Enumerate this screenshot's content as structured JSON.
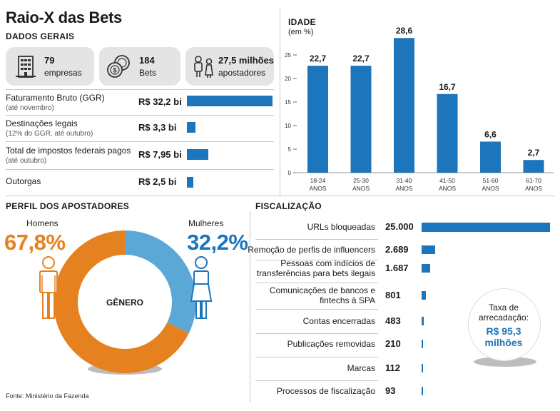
{
  "title": "Raio-X das Bets",
  "dados_gerais": {
    "heading": "DADOS GERAIS",
    "stats": [
      {
        "value": "79",
        "label": "empresas",
        "icon": "building-icon"
      },
      {
        "value": "184",
        "label": "Bets",
        "icon": "coins-icon"
      },
      {
        "value": "27,5 milhões",
        "label": "apostadores",
        "icon": "people-icon"
      }
    ],
    "rows": [
      {
        "label": "Faturamento Bruto (GGR)",
        "note": "(até novembro)",
        "value": "R$ 32,2 bi",
        "amount": 32.2
      },
      {
        "label": "Destinações legais",
        "note": "(12% do GGR, até outubro)",
        "value": "R$ 3,3 bi",
        "amount": 3.3
      },
      {
        "label": "Total de impostos federais pagos",
        "note": "(até outubro)",
        "value": "R$ 7,95 bi",
        "amount": 7.95
      },
      {
        "label": "Outorgas",
        "note": "",
        "value": "R$ 2,5 bi",
        "amount": 2.5
      }
    ]
  },
  "idade": {
    "heading": "IDADE",
    "unit": "(em %)"
  },
  "perfil": {
    "heading": "PERFIL DOS APOSTADORES",
    "men_label": "Homens",
    "men_value": "67,8%",
    "women_label": "Mulheres",
    "women_value": "32,2%",
    "center_label": "GÊNERO"
  },
  "fiscalizacao": {
    "heading": "FISCALIZAÇÃO",
    "callout_label": "Taxa de arrecadação:",
    "callout_value": "R$ 95,3 milhões"
  },
  "source": "Fonte: Ministério da Fazenda",
  "colors": {
    "blue": "#1d75bc",
    "orange": "#e5811f",
    "light_blue": "#5ba8d6",
    "gray_box": "#e4e4e4"
  },
  "chart_data": [
    {
      "type": "bar",
      "title": "IDADE",
      "ylabel": "(em %)",
      "categories": [
        "18-24 ANOS",
        "25-30 ANOS",
        "31-40 ANOS",
        "41-50 ANOS",
        "51-60 ANOS",
        "61-70 ANOS"
      ],
      "values": [
        22.7,
        22.7,
        28.6,
        16.7,
        6.6,
        2.7
      ],
      "data_labels": [
        "22,7",
        "22,7",
        "28,6",
        "16,7",
        "6,6",
        "2,7"
      ],
      "ylim": [
        0,
        30
      ],
      "yticks": [
        0,
        5,
        10,
        15,
        20,
        25
      ],
      "grid": false
    },
    {
      "type": "pie",
      "title": "GÊNERO",
      "categories": [
        "Homens",
        "Mulheres"
      ],
      "values": [
        67.8,
        32.2
      ]
    },
    {
      "type": "bar",
      "orientation": "horizontal",
      "title": "FISCALIZAÇÃO",
      "categories": [
        "URLs bloqueadas",
        "Remoção de perfis de influencers",
        "Pessoas com indícios de transferências para bets ilegais",
        "Comunicações de bancos e fintechs à SPA",
        "Contas encerradas",
        "Publicações removidas",
        "Marcas",
        "Processos de fiscalização"
      ],
      "values": [
        25000,
        2689,
        1687,
        801,
        483,
        210,
        112,
        93
      ],
      "data_labels": [
        "25.000",
        "2.689",
        "1.687",
        "801",
        "483",
        "210",
        "112",
        "93"
      ]
    }
  ]
}
